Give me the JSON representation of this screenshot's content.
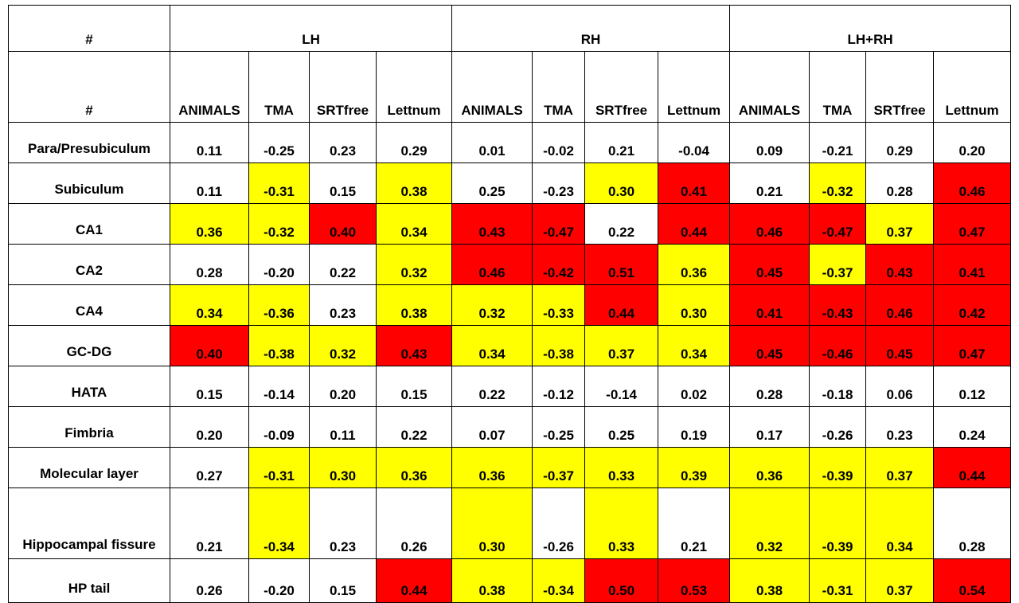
{
  "header": {
    "corner": "#",
    "groups": [
      "LH",
      "RH",
      "LH+RH"
    ],
    "subcorner": "#",
    "measures": [
      "ANIMALS",
      "TMA",
      "SRTfree",
      "Lettnum",
      "ANIMALS",
      "TMA",
      "SRTfree",
      "Lettnum",
      "ANIMALS",
      "TMA",
      "SRTfree",
      "Lettnum"
    ]
  },
  "highlight_colors": {
    "yellow": "#ffff00",
    "red": "#ff0000",
    "none": "#ffffff"
  },
  "rows": [
    {
      "label": "Para/Presubiculum",
      "values": [
        "0.11",
        "-0.25",
        "0.23",
        "0.29",
        "0.01",
        "-0.02",
        "0.21",
        "-0.04",
        "0.09",
        "-0.21",
        "0.29",
        "0.20"
      ],
      "colors": [
        "",
        "",
        "",
        "",
        "",
        "",
        "",
        "",
        "",
        "",
        "",
        ""
      ]
    },
    {
      "label": "Subiculum",
      "values": [
        "0.11",
        "-0.31",
        "0.15",
        "0.38",
        "0.25",
        "-0.23",
        "0.30",
        "0.41",
        "0.21",
        "-0.32",
        "0.28",
        "0.46"
      ],
      "colors": [
        "",
        "y",
        "",
        "y",
        "",
        "",
        "y",
        "r",
        "",
        "y",
        "",
        "r"
      ]
    },
    {
      "label": "CA1",
      "values": [
        "0.36",
        "-0.32",
        "0.40",
        "0.34",
        "0.43",
        "-0.47",
        "0.22",
        "0.44",
        "0.46",
        "-0.47",
        "0.37",
        "0.47"
      ],
      "colors": [
        "y",
        "y",
        "r",
        "y",
        "r",
        "r",
        "",
        "r",
        "r",
        "r",
        "y",
        "r"
      ]
    },
    {
      "label": "CA2",
      "values": [
        "0.28",
        "-0.20",
        "0.22",
        "0.32",
        "0.46",
        "-0.42",
        "0.51",
        "0.36",
        "0.45",
        "-0.37",
        "0.43",
        "0.41"
      ],
      "colors": [
        "",
        "",
        "",
        "y",
        "r",
        "r",
        "r",
        "y",
        "r",
        "y",
        "r",
        "r"
      ]
    },
    {
      "label": "CA4",
      "values": [
        "0.34",
        "-0.36",
        "0.23",
        "0.38",
        "0.32",
        "-0.33",
        "0.44",
        "0.30",
        "0.41",
        "-0.43",
        "0.46",
        "0.42"
      ],
      "colors": [
        "y",
        "y",
        "",
        "y",
        "y",
        "y",
        "r",
        "y",
        "r",
        "r",
        "r",
        "r"
      ]
    },
    {
      "label": "GC-DG",
      "values": [
        "0.40",
        "-0.38",
        "0.32",
        "0.43",
        "0.34",
        "-0.38",
        "0.37",
        "0.34",
        "0.45",
        "-0.46",
        "0.45",
        "0.47"
      ],
      "colors": [
        "r",
        "y",
        "y",
        "r",
        "y",
        "y",
        "y",
        "y",
        "r",
        "r",
        "r",
        "r"
      ]
    },
    {
      "label": "HATA",
      "values": [
        "0.15",
        "-0.14",
        "0.20",
        "0.15",
        "0.22",
        "-0.12",
        "-0.14",
        "0.02",
        "0.28",
        "-0.18",
        "0.06",
        "0.12"
      ],
      "colors": [
        "",
        "",
        "",
        "",
        "",
        "",
        "",
        "",
        "",
        "",
        "",
        ""
      ]
    },
    {
      "label": "Fimbria",
      "values": [
        "0.20",
        "-0.09",
        "0.11",
        "0.22",
        "0.07",
        "-0.25",
        "0.25",
        "0.19",
        "0.17",
        "-0.26",
        "0.23",
        "0.24"
      ],
      "colors": [
        "",
        "",
        "",
        "",
        "",
        "",
        "",
        "",
        "",
        "",
        "",
        ""
      ]
    },
    {
      "label": "Molecular layer",
      "values": [
        "0.27",
        "-0.31",
        "0.30",
        "0.36",
        "0.36",
        "-0.37",
        "0.33",
        "0.39",
        "0.36",
        "-0.39",
        "0.37",
        "0.44"
      ],
      "colors": [
        "",
        "y",
        "y",
        "y",
        "y",
        "y",
        "y",
        "y",
        "y",
        "y",
        "y",
        "r"
      ]
    },
    {
      "label": "Hippocampal fissure",
      "values": [
        "0.21",
        "-0.34",
        "0.23",
        "0.26",
        "0.30",
        "-0.26",
        "0.33",
        "0.21",
        "0.32",
        "-0.39",
        "0.34",
        "0.28"
      ],
      "colors": [
        "",
        "y",
        "",
        "",
        "y",
        "",
        "y",
        "",
        "y",
        "y",
        "y",
        ""
      ]
    },
    {
      "label": "HP tail",
      "values": [
        "0.26",
        "-0.20",
        "0.15",
        "0.44",
        "0.38",
        "-0.34",
        "0.50",
        "0.53",
        "0.38",
        "-0.31",
        "0.37",
        "0.54"
      ],
      "colors": [
        "",
        "",
        "",
        "r",
        "y",
        "y",
        "r",
        "r",
        "y",
        "y",
        "y",
        "r"
      ]
    }
  ]
}
